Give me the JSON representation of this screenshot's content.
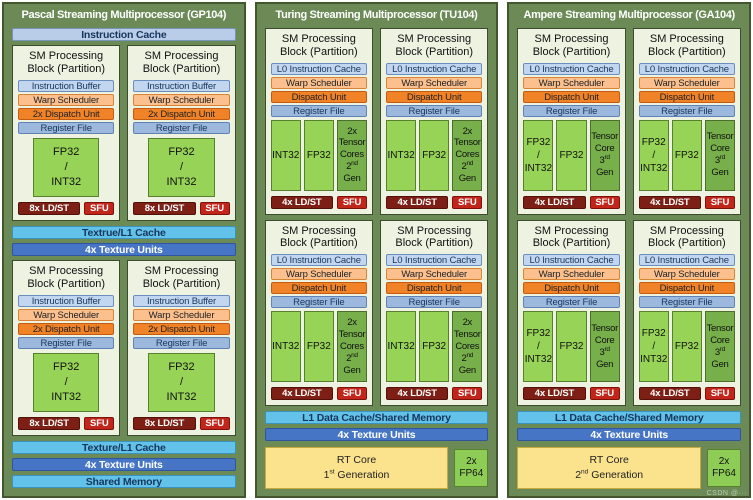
{
  "colors": {
    "panel_green": "#6b8a56",
    "panel_border": "#42572e",
    "block_bg": "#edf2e1",
    "block_border": "#3d4b2f",
    "periwinkle": "#b9cde8",
    "light_blue": "#c3d6ef",
    "warp_orange": "#fbc08e",
    "dispatch_orange": "#f08228",
    "register_blue": "#9db8dd",
    "core_green": "#97d356",
    "tensor_green": "#77b04a",
    "ldst_red": "#7e1f15",
    "sfu_red": "#c2261b",
    "cyan_blue": "#63c2e9",
    "texture_blue": "#4575c4",
    "rt_yellow": "#fbe28d",
    "fp64_green": "#8ecd55",
    "navy_text": "#17365d"
  },
  "watermark": "CSDN @···",
  "panels": {
    "pascal": {
      "title": "Pascal Streaming Multiprocessor (GP104)",
      "instruction_cache": "Instruction Cache",
      "block": {
        "header1": "SM Processing",
        "header2": "Block (Partition)",
        "bar1": "Instruction Buffer",
        "bar2": "Warp Scheduler",
        "bar3": "2x Dispatch Unit",
        "bar4": "Register File",
        "core1": "FP32",
        "core2": "/",
        "core3": "INT32",
        "ldst": "8x LD/ST",
        "sfu": "SFU"
      },
      "mid_cache": "Textrue/L1 Cache",
      "mid_texture_units": "4x Texture Units",
      "bottom_cache": "Texture/L1 Cache",
      "bottom_texture_units": "4x Texture Units",
      "shared_memory": "Shared Memory"
    },
    "turing": {
      "title": "Turing Streaming Multiprocessor (TU104)",
      "block": {
        "header1": "SM Processing",
        "header2": "Block (Partition)",
        "bar1": "L0 Instruction Cache",
        "bar2": "Warp Scheduler",
        "bar3": "Dispatch Unit",
        "bar4": "Register File",
        "col1": "INT32",
        "col2": "FP32",
        "tensor": {
          "l1": "2x",
          "l2": "Tensor",
          "l3": "Cores",
          "l4_base": "2",
          "l4_sup": "nd",
          "l5": "Gen"
        },
        "ldst": "4x LD/ST",
        "sfu": "SFU"
      },
      "l1_cache": "L1 Data Cache/Shared Memory",
      "texture_units": "4x Texture Units",
      "rt_core": {
        "line1": "RT Core",
        "base": "1",
        "sup": "st",
        "rest": " Generation"
      },
      "fp64": {
        "l1": "2x",
        "l2": "FP64"
      }
    },
    "ampere": {
      "title": "Ampere Streaming Multiprocessor (GA104)",
      "block": {
        "header1": "SM Processing",
        "header2": "Block (Partition)",
        "bar1": "L0 Instruction Cache",
        "bar2": "Warp Scheduler",
        "bar3": "Dispatch Unit",
        "bar4": "Register File",
        "col1a": "FP32",
        "col1b": "/",
        "col1c": "INT32",
        "col2": "FP32",
        "tensor": {
          "l1": "Tensor",
          "l2": "Core",
          "l3_base": "3",
          "l3_sup": "rd",
          "l4": "Gen"
        },
        "ldst": "4x LD/ST",
        "sfu": "SFU"
      },
      "l1_cache": "L1 Data Cache/Shared Memory",
      "texture_units": "4x Texture Units",
      "rt_core": {
        "line1": "RT Core",
        "base": "2",
        "sup": "nd",
        "rest": " Generation"
      },
      "fp64": {
        "l1": "2x",
        "l2": "FP64"
      }
    }
  }
}
